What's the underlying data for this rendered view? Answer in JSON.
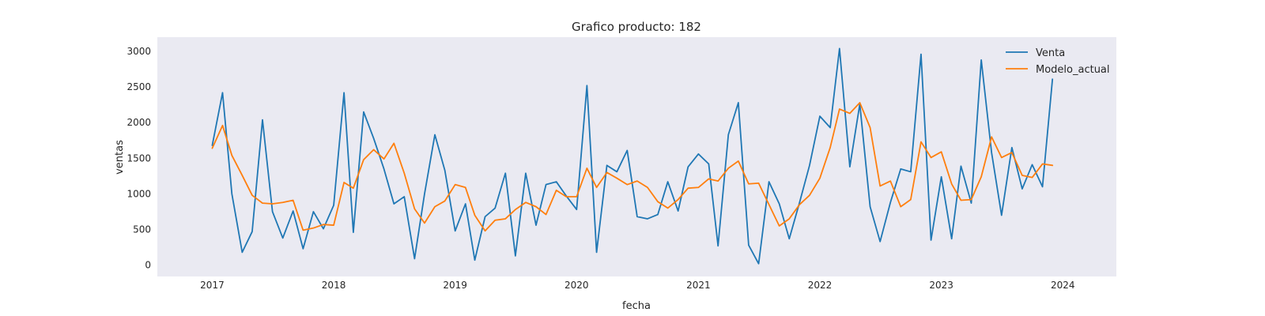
{
  "chart_data": {
    "type": "line",
    "title": "Grafico producto: 182",
    "xlabel": "fecha",
    "ylabel": "ventas",
    "x_axis": "monthly dates",
    "x": [
      "2017-01",
      "2017-02",
      "2017-03",
      "2017-04",
      "2017-05",
      "2017-06",
      "2017-07",
      "2017-08",
      "2017-09",
      "2017-10",
      "2017-11",
      "2017-12",
      "2018-01",
      "2018-02",
      "2018-03",
      "2018-04",
      "2018-05",
      "2018-06",
      "2018-07",
      "2018-08",
      "2018-09",
      "2018-10",
      "2018-11",
      "2018-12",
      "2019-01",
      "2019-02",
      "2019-03",
      "2019-04",
      "2019-05",
      "2019-06",
      "2019-07",
      "2019-08",
      "2019-09",
      "2019-10",
      "2019-11",
      "2019-12",
      "2020-01",
      "2020-02",
      "2020-03",
      "2020-04",
      "2020-05",
      "2020-06",
      "2020-07",
      "2020-08",
      "2020-09",
      "2020-10",
      "2020-11",
      "2020-12",
      "2021-01",
      "2021-02",
      "2021-03",
      "2021-04",
      "2021-05",
      "2021-06",
      "2021-07",
      "2021-08",
      "2021-09",
      "2021-10",
      "2021-11",
      "2021-12",
      "2022-01",
      "2022-02",
      "2022-03",
      "2022-04",
      "2022-05",
      "2022-06",
      "2022-07",
      "2022-08",
      "2022-09",
      "2022-10",
      "2022-11",
      "2022-12",
      "2023-01",
      "2023-02",
      "2023-03",
      "2023-04",
      "2023-05",
      "2023-06",
      "2023-07",
      "2023-08",
      "2023-09",
      "2023-10",
      "2023-11",
      "2023-12"
    ],
    "series": [
      {
        "name": "Venta",
        "color": "#1f77b4",
        "values": [
          1680,
          2420,
          1000,
          180,
          470,
          2040,
          750,
          380,
          760,
          230,
          750,
          510,
          840,
          2420,
          460,
          2150,
          1780,
          1350,
          860,
          960,
          90,
          1000,
          1830,
          1330,
          480,
          860,
          70,
          680,
          800,
          1290,
          130,
          1290,
          560,
          1130,
          1170,
          970,
          780,
          2520,
          180,
          1400,
          1310,
          1610,
          680,
          650,
          710,
          1170,
          760,
          1380,
          1560,
          1420,
          270,
          1830,
          2280,
          280,
          20,
          1170,
          860,
          370,
          880,
          1400,
          2090,
          1930,
          3040,
          1380,
          2260,
          820,
          330,
          880,
          1350,
          1310,
          2960,
          350,
          1240,
          370,
          1390,
          870,
          2880,
          1580,
          700,
          1650,
          1070,
          1410,
          1100,
          2610
        ]
      },
      {
        "name": "Modelo_actual",
        "color": "#ff7f0e",
        "values": [
          1640,
          1960,
          1540,
          1260,
          980,
          870,
          860,
          880,
          910,
          490,
          520,
          570,
          560,
          1160,
          1080,
          1480,
          1620,
          1490,
          1710,
          1290,
          790,
          590,
          820,
          900,
          1130,
          1090,
          700,
          480,
          630,
          650,
          780,
          880,
          820,
          710,
          1050,
          960,
          960,
          1360,
          1090,
          1300,
          1220,
          1130,
          1180,
          1090,
          890,
          800,
          920,
          1080,
          1090,
          1210,
          1180,
          1360,
          1460,
          1140,
          1150,
          850,
          550,
          650,
          850,
          980,
          1220,
          1650,
          2190,
          2130,
          2280,
          1930,
          1110,
          1180,
          820,
          920,
          1730,
          1510,
          1590,
          1140,
          910,
          920,
          1240,
          1800,
          1510,
          1580,
          1260,
          1230,
          1420,
          1400
        ]
      }
    ],
    "yticks": [
      "0",
      "500",
      "1000",
      "1500",
      "2000",
      "2500",
      "3000"
    ],
    "ytick_values": [
      0,
      500,
      1000,
      1500,
      2000,
      2500,
      3000
    ],
    "xticks": [
      "2017",
      "2018",
      "2019",
      "2020",
      "2021",
      "2022",
      "2023",
      "2024"
    ],
    "xtick_values": [
      "2017-01",
      "2018-01",
      "2019-01",
      "2020-01",
      "2021-01",
      "2022-01",
      "2023-01",
      "2024-01"
    ],
    "ylim": [
      -160,
      3200
    ],
    "xlim": [
      "2016-07-20",
      "2024-06-10"
    ],
    "grid": false,
    "legend_position": "top-right",
    "background": "#eaeaf2"
  }
}
